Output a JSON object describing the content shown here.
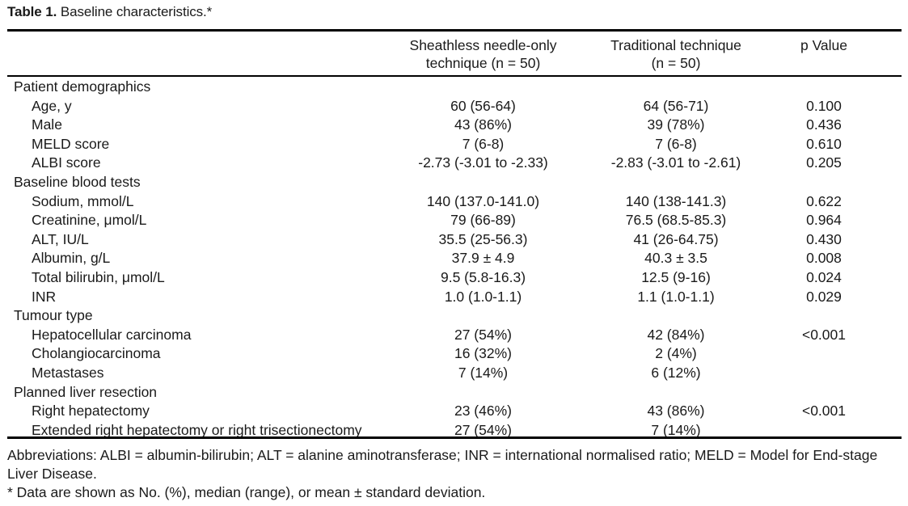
{
  "table": {
    "caption_label": "Table 1.",
    "caption_text": " Baseline characteristics.*",
    "headers": {
      "col2_line1": "Sheathless needle-only",
      "col2_line2": "technique (n = 50)",
      "col3_line1": "Traditional technique",
      "col3_line2": "(n = 50)",
      "col4": "p Value"
    },
    "rows": [
      {
        "label": "Patient demographics",
        "section": true,
        "c2": "",
        "c3": "",
        "c4": ""
      },
      {
        "label": "Age, y",
        "section": false,
        "c2": "60 (56-64)",
        "c3": "64 (56-71)",
        "c4": "0.100"
      },
      {
        "label": "Male",
        "section": false,
        "c2": "43 (86%)",
        "c3": "39 (78%)",
        "c4": "0.436"
      },
      {
        "label": "MELD score",
        "section": false,
        "c2": "7 (6-8)",
        "c3": "7 (6-8)",
        "c4": "0.610"
      },
      {
        "label": "ALBI score",
        "section": false,
        "c2": "-2.73 (-3.01 to -2.33)",
        "c3": "-2.83 (-3.01 to -2.61)",
        "c4": "0.205"
      },
      {
        "label": "Baseline blood tests",
        "section": true,
        "c2": "",
        "c3": "",
        "c4": ""
      },
      {
        "label": "Sodium, mmol/L",
        "section": false,
        "c2": "140 (137.0-141.0)",
        "c3": "140 (138-141.3)",
        "c4": "0.622"
      },
      {
        "label": "Creatinine, μmol/L",
        "section": false,
        "c2": "79 (66-89)",
        "c3": "76.5 (68.5-85.3)",
        "c4": "0.964"
      },
      {
        "label": "ALT, IU/L",
        "section": false,
        "c2": "35.5 (25-56.3)",
        "c3": "41 (26-64.75)",
        "c4": "0.430"
      },
      {
        "label": "Albumin, g/L",
        "section": false,
        "c2": "37.9 ± 4.9",
        "c3": "40.3 ± 3.5",
        "c4": "0.008"
      },
      {
        "label": "Total bilirubin, μmol/L",
        "section": false,
        "c2": "9.5 (5.8-16.3)",
        "c3": "12.5 (9-16)",
        "c4": "0.024"
      },
      {
        "label": "INR",
        "section": false,
        "c2": "1.0 (1.0-1.1)",
        "c3": "1.1 (1.0-1.1)",
        "c4": "0.029"
      },
      {
        "label": "Tumour type",
        "section": true,
        "c2": "",
        "c3": "",
        "c4": ""
      },
      {
        "label": "Hepatocellular carcinoma",
        "section": false,
        "c2": "27 (54%)",
        "c3": "42 (84%)",
        "c4": "<0.001"
      },
      {
        "label": "Cholangiocarcinoma",
        "section": false,
        "c2": "16 (32%)",
        "c3": "2 (4%)",
        "c4": ""
      },
      {
        "label": "Metastases",
        "section": false,
        "c2": "7 (14%)",
        "c3": "6 (12%)",
        "c4": ""
      },
      {
        "label": "Planned liver resection",
        "section": true,
        "c2": "",
        "c3": "",
        "c4": ""
      },
      {
        "label": "Right hepatectomy",
        "section": false,
        "c2": "23 (46%)",
        "c3": "43 (86%)",
        "c4": "<0.001"
      },
      {
        "label": "Extended right hepatectomy or right trisectionectomy",
        "section": false,
        "c2": "27 (54%)",
        "c3": "7 (14%)",
        "c4": ""
      }
    ],
    "footnotes": {
      "abbreviations": "Abbreviations: ALBI = albumin-bilirubin; ALT = alanine aminotransferase; INR = international normalised ratio; MELD = Model for End-stage Liver Disease.",
      "data_note": "* Data are shown as No. (%), median (range), or mean ± standard deviation."
    }
  }
}
